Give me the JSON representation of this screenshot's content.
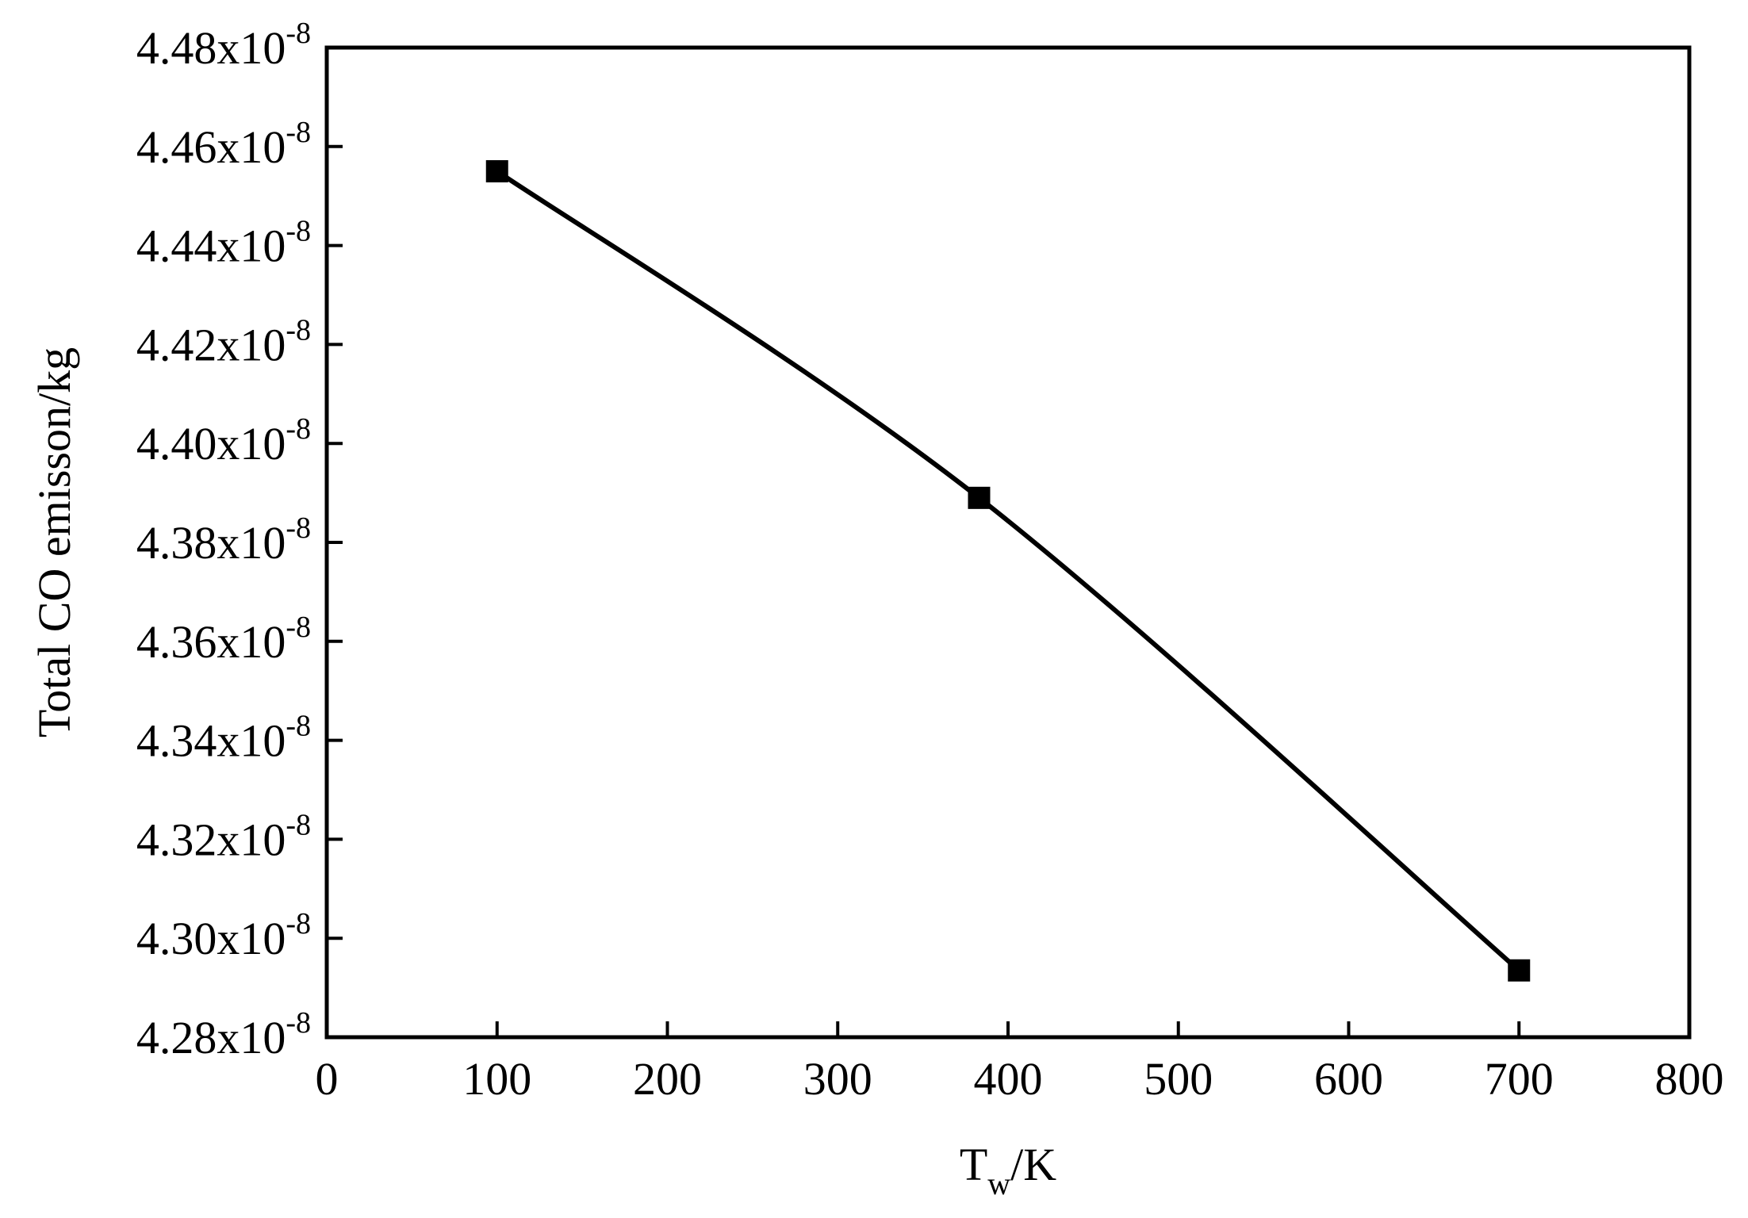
{
  "chart_data": {
    "type": "line",
    "xlabel": "T",
    "xlabel_subscript": "w",
    "xlabel_suffix": "/K",
    "ylabel": "Total CO emisson/kg",
    "xlim": [
      0,
      800
    ],
    "ylim": [
      4.28e-08,
      4.48e-08
    ],
    "x_ticks": [
      0,
      100,
      200,
      300,
      400,
      500,
      600,
      700,
      800
    ],
    "x_tick_labels": [
      "0",
      "100",
      "200",
      "300",
      "400",
      "500",
      "600",
      "700",
      "800"
    ],
    "y_ticks": [
      4.28e-08,
      4.3e-08,
      4.32e-08,
      4.34e-08,
      4.36e-08,
      4.38e-08,
      4.4e-08,
      4.42e-08,
      4.44e-08,
      4.46e-08,
      4.48e-08
    ],
    "y_tick_labels": [
      {
        "mantissa": "4.28x10",
        "exp": "-8"
      },
      {
        "mantissa": "4.30x10",
        "exp": "-8"
      },
      {
        "mantissa": "4.32x10",
        "exp": "-8"
      },
      {
        "mantissa": "4.34x10",
        "exp": "-8"
      },
      {
        "mantissa": "4.36x10",
        "exp": "-8"
      },
      {
        "mantissa": "4.38x10",
        "exp": "-8"
      },
      {
        "mantissa": "4.40x10",
        "exp": "-8"
      },
      {
        "mantissa": "4.42x10",
        "exp": "-8"
      },
      {
        "mantissa": "4.44x10",
        "exp": "-8"
      },
      {
        "mantissa": "4.46x10",
        "exp": "-8"
      },
      {
        "mantissa": "4.48x10",
        "exp": "-8"
      }
    ],
    "grid": false,
    "series": [
      {
        "marker": "square",
        "color": "#000000",
        "x": [
          100,
          383,
          700
        ],
        "y": [
          4.455e-08,
          4.389e-08,
          4.2935e-08
        ]
      }
    ]
  }
}
